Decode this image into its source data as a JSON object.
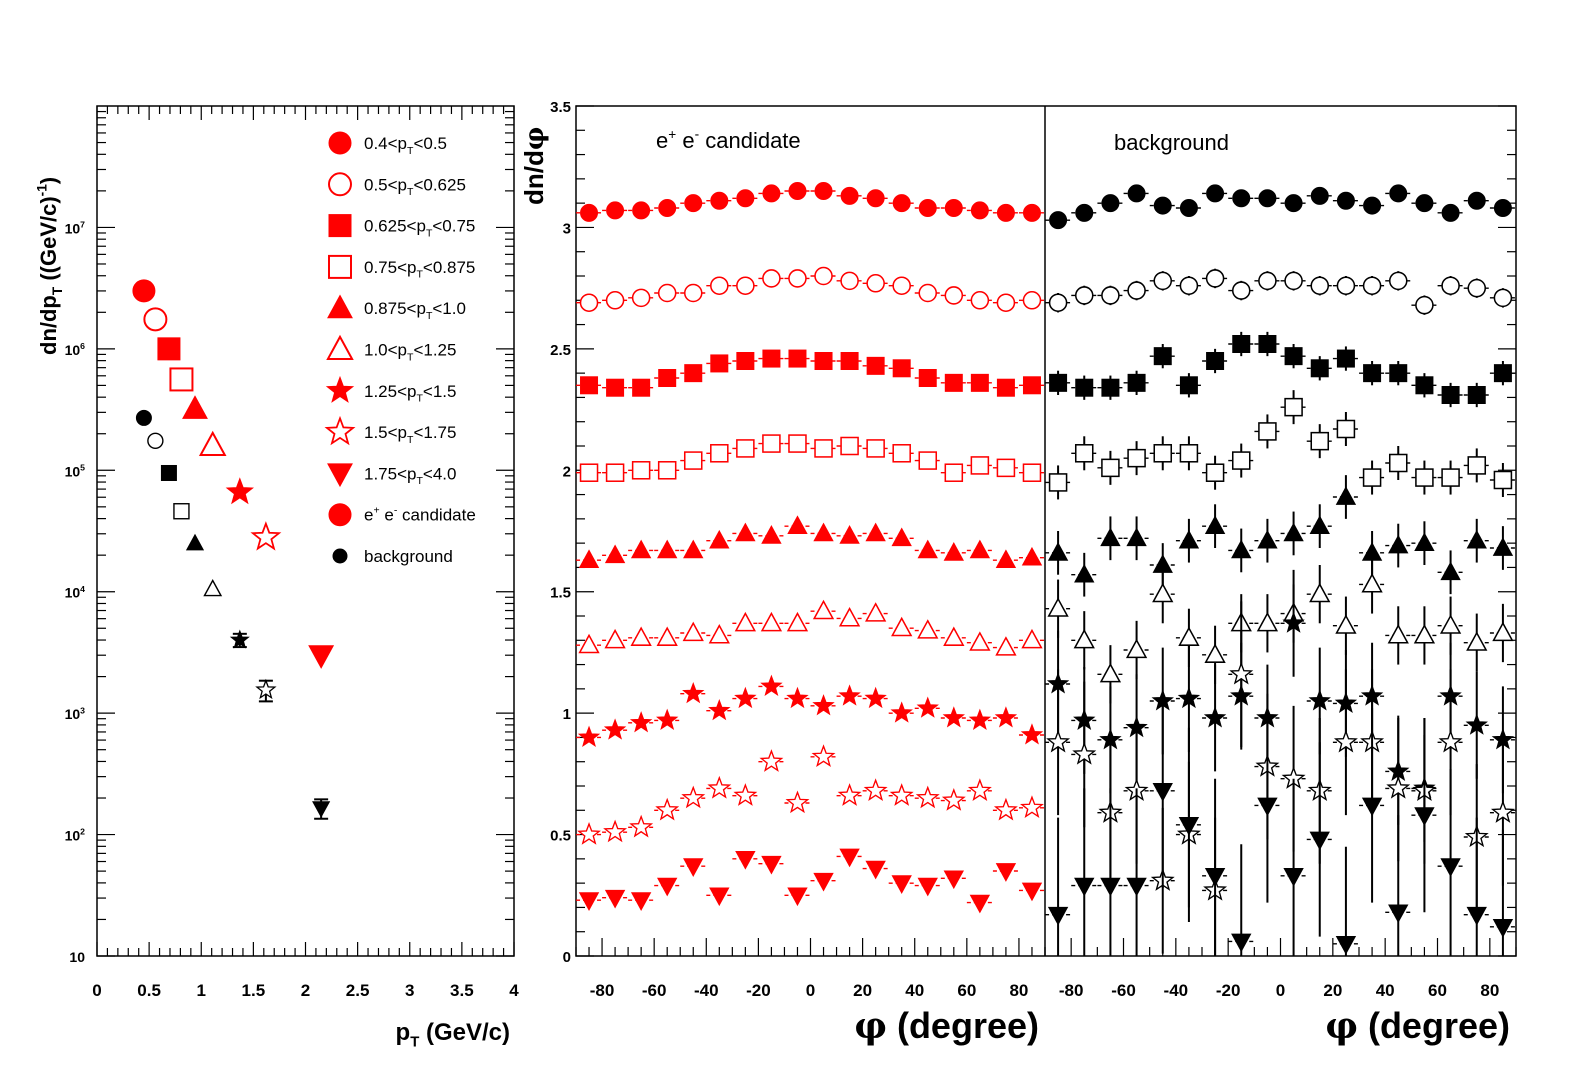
{
  "colors": {
    "candidate": "#ff0000",
    "background": "#000000"
  },
  "chart_data": [
    {
      "type": "scatter",
      "yscale": "log",
      "xlabel_main": "p",
      "xlabel_sub": "T",
      "xlabel_rest": " (GeV/c)",
      "ylabel_main": "dn/dp",
      "ylabel_sub": "T",
      "ylabel_rest": " ((GeV/c)",
      "ylabel_sup": "-1",
      "ylabel_end": ")",
      "xlim": [
        0,
        4
      ],
      "ylim": [
        10,
        100000000.0
      ],
      "xticks": [
        "0",
        "0.5",
        "1",
        "1.5",
        "2",
        "2.5",
        "3",
        "3.5",
        "4"
      ],
      "yticks": [
        {
          "base": "10",
          "exp": ""
        },
        {
          "base": "10",
          "exp": "2"
        },
        {
          "base": "10",
          "exp": "3"
        },
        {
          "base": "10",
          "exp": "4"
        },
        {
          "base": "10",
          "exp": "5"
        },
        {
          "base": "10",
          "exp": "6"
        },
        {
          "base": "10",
          "exp": "7"
        }
      ],
      "legend_position": "top-right",
      "legend": [
        {
          "marker": "circle",
          "fill": true,
          "color": "candidate",
          "pre": "0.4<p",
          "sub": "T",
          "post": "<0.5"
        },
        {
          "marker": "circle",
          "fill": false,
          "color": "candidate",
          "pre": "0.5<p",
          "sub": "T",
          "post": "<0.625"
        },
        {
          "marker": "square",
          "fill": true,
          "color": "candidate",
          "pre": "0.625<p",
          "sub": "T",
          "post": "<0.75"
        },
        {
          "marker": "square",
          "fill": false,
          "color": "candidate",
          "pre": "0.75<p",
          "sub": "T",
          "post": "<0.875"
        },
        {
          "marker": "triangle",
          "fill": true,
          "color": "candidate",
          "pre": "0.875<p",
          "sub": "T",
          "post": "<1.0"
        },
        {
          "marker": "triangle",
          "fill": false,
          "color": "candidate",
          "pre": "1.0<p",
          "sub": "T",
          "post": "<1.25"
        },
        {
          "marker": "star",
          "fill": true,
          "color": "candidate",
          "pre": "1.25<p",
          "sub": "T",
          "post": "<1.5"
        },
        {
          "marker": "star",
          "fill": false,
          "color": "candidate",
          "pre": "1.5<p",
          "sub": "T",
          "post": "<1.75"
        },
        {
          "marker": "invtriangle",
          "fill": true,
          "color": "candidate",
          "pre": "1.75<p",
          "sub": "T",
          "post": "<4.0"
        },
        {
          "marker": "circle",
          "fill": true,
          "color": "candidate",
          "pre": "e",
          "sup1": "+",
          "mid": " e",
          "sup2": "-",
          "post": " candidate"
        },
        {
          "marker": "circle",
          "fill": true,
          "color": "background",
          "small": true,
          "pre": "background"
        }
      ],
      "series": [
        {
          "name": "e+ e- candidate",
          "color": "candidate",
          "points": [
            {
              "x": 0.45,
              "y": 3000000.0,
              "marker": "circle",
              "fill": true
            },
            {
              "x": 0.56,
              "y": 1750000.0,
              "marker": "circle",
              "fill": false
            },
            {
              "x": 0.69,
              "y": 1000000.0,
              "marker": "square",
              "fill": true
            },
            {
              "x": 0.81,
              "y": 560000.0,
              "marker": "square",
              "fill": false
            },
            {
              "x": 0.94,
              "y": 320000.0,
              "marker": "triangle",
              "fill": true
            },
            {
              "x": 1.11,
              "y": 160000.0,
              "marker": "triangle",
              "fill": false
            },
            {
              "x": 1.37,
              "y": 66000.0,
              "marker": "star",
              "fill": true
            },
            {
              "x": 1.62,
              "y": 28000.0,
              "marker": "star",
              "fill": false
            },
            {
              "x": 2.15,
              "y": 3000.0,
              "marker": "invtriangle",
              "fill": true
            }
          ]
        },
        {
          "name": "background",
          "color": "background",
          "points": [
            {
              "x": 0.45,
              "y": 270000.0,
              "marker": "circle",
              "fill": true
            },
            {
              "x": 0.56,
              "y": 175000.0,
              "marker": "circle",
              "fill": false
            },
            {
              "x": 0.69,
              "y": 95000.0,
              "marker": "square",
              "fill": true
            },
            {
              "x": 0.81,
              "y": 46000.0,
              "marker": "square",
              "fill": false
            },
            {
              "x": 0.94,
              "y": 25000.0,
              "marker": "triangle",
              "fill": true
            },
            {
              "x": 1.11,
              "y": 10500.0,
              "marker": "triangle",
              "fill": false
            },
            {
              "x": 1.37,
              "y": 4000.0,
              "marker": "star",
              "fill": true,
              "yerr": 500
            },
            {
              "x": 1.62,
              "y": 1550.0,
              "marker": "star",
              "fill": false,
              "yerr": 300
            },
            {
              "x": 2.15,
              "y": 165,
              "marker": "invtriangle",
              "fill": true,
              "yerr": 30
            }
          ]
        }
      ]
    },
    {
      "type": "scatter",
      "ylabel": "dn/d",
      "ylabel_symbol": "φ",
      "xlabel_symbol": "φ",
      "xlabel": " (degree)",
      "ylim": [
        0,
        3.5
      ],
      "yticks": [
        "0",
        "0.5",
        "1",
        "1.5",
        "2",
        "2.5",
        "3",
        "3.5"
      ],
      "xticks": [
        "-80",
        "-60",
        "-40",
        "-20",
        "0",
        "20",
        "40",
        "60",
        "80"
      ],
      "xlim": [
        -90,
        90
      ],
      "panels": [
        {
          "label_pre": "e",
          "label_sup1": "+",
          "label_mid": " e",
          "label_sup2": "-",
          "label_post": " candidate",
          "color": "candidate",
          "x": [
            -85,
            -75,
            -65,
            -55,
            -45,
            -35,
            -25,
            -15,
            -5,
            5,
            15,
            25,
            35,
            45,
            55,
            65,
            75,
            85
          ],
          "series": [
            {
              "marker": "circle",
              "fill": true,
              "y": [
                3.06,
                3.07,
                3.07,
                3.08,
                3.1,
                3.11,
                3.12,
                3.14,
                3.15,
                3.15,
                3.13,
                3.12,
                3.1,
                3.08,
                3.08,
                3.07,
                3.06,
                3.06
              ]
            },
            {
              "marker": "circle",
              "fill": false,
              "y": [
                2.69,
                2.7,
                2.71,
                2.73,
                2.73,
                2.76,
                2.76,
                2.79,
                2.79,
                2.8,
                2.78,
                2.77,
                2.76,
                2.73,
                2.72,
                2.7,
                2.69,
                2.7
              ]
            },
            {
              "marker": "square",
              "fill": true,
              "y": [
                2.35,
                2.34,
                2.34,
                2.38,
                2.4,
                2.44,
                2.45,
                2.46,
                2.46,
                2.45,
                2.45,
                2.43,
                2.42,
                2.38,
                2.36,
                2.36,
                2.34,
                2.35
              ]
            },
            {
              "marker": "square",
              "fill": false,
              "y": [
                1.99,
                1.99,
                2.0,
                2.0,
                2.04,
                2.07,
                2.09,
                2.11,
                2.11,
                2.09,
                2.1,
                2.09,
                2.07,
                2.04,
                1.99,
                2.02,
                2.01,
                1.99
              ]
            },
            {
              "marker": "triangle",
              "fill": true,
              "y": [
                1.63,
                1.65,
                1.67,
                1.67,
                1.67,
                1.71,
                1.74,
                1.73,
                1.77,
                1.74,
                1.73,
                1.74,
                1.72,
                1.67,
                1.66,
                1.67,
                1.63,
                1.64
              ]
            },
            {
              "marker": "triangle",
              "fill": false,
              "y": [
                1.28,
                1.3,
                1.31,
                1.31,
                1.33,
                1.32,
                1.37,
                1.37,
                1.37,
                1.42,
                1.39,
                1.41,
                1.35,
                1.34,
                1.31,
                1.29,
                1.27,
                1.3
              ]
            },
            {
              "marker": "star",
              "fill": true,
              "y": [
                0.9,
                0.93,
                0.96,
                0.97,
                1.08,
                1.01,
                1.06,
                1.11,
                1.06,
                1.03,
                1.07,
                1.06,
                1.0,
                1.02,
                0.98,
                0.97,
                0.98,
                0.91
              ]
            },
            {
              "marker": "star",
              "fill": false,
              "y": [
                0.5,
                0.51,
                0.53,
                0.6,
                0.65,
                0.69,
                0.66,
                0.8,
                0.63,
                0.82,
                0.66,
                0.68,
                0.66,
                0.65,
                0.64,
                0.68,
                0.6,
                0.61
              ]
            },
            {
              "marker": "invtriangle",
              "fill": true,
              "y": [
                0.23,
                0.24,
                0.23,
                0.29,
                0.37,
                0.25,
                0.4,
                0.38,
                0.25,
                0.31,
                0.41,
                0.36,
                0.3,
                0.29,
                0.32,
                0.22,
                0.35,
                0.27
              ]
            }
          ]
        },
        {
          "label": "background",
          "color": "background",
          "x": [
            -85,
            -75,
            -65,
            -55,
            -45,
            -35,
            -25,
            -15,
            -5,
            5,
            15,
            25,
            35,
            45,
            55,
            65,
            75,
            85
          ],
          "series": [
            {
              "marker": "circle",
              "fill": true,
              "yerr": 0.03,
              "y": [
                3.03,
                3.06,
                3.1,
                3.14,
                3.09,
                3.08,
                3.14,
                3.12,
                3.12,
                3.1,
                3.13,
                3.11,
                3.09,
                3.14,
                3.1,
                3.06,
                3.11,
                3.08
              ]
            },
            {
              "marker": "circle",
              "fill": false,
              "yerr": 0.04,
              "y": [
                2.69,
                2.72,
                2.72,
                2.74,
                2.78,
                2.76,
                2.79,
                2.74,
                2.78,
                2.78,
                2.76,
                2.76,
                2.76,
                2.78,
                2.68,
                2.76,
                2.75,
                2.71
              ]
            },
            {
              "marker": "square",
              "fill": true,
              "yerr": 0.05,
              "y": [
                2.36,
                2.34,
                2.34,
                2.36,
                2.47,
                2.35,
                2.45,
                2.52,
                2.52,
                2.47,
                2.42,
                2.46,
                2.4,
                2.4,
                2.35,
                2.31,
                2.31,
                2.4
              ]
            },
            {
              "marker": "square",
              "fill": false,
              "yerr": 0.07,
              "y": [
                1.95,
                2.07,
                2.01,
                2.05,
                2.07,
                2.07,
                1.99,
                2.04,
                2.16,
                2.26,
                2.12,
                2.17,
                1.97,
                2.03,
                1.97,
                1.97,
                2.02,
                1.96
              ]
            },
            {
              "marker": "triangle",
              "fill": true,
              "yerr": 0.09,
              "y": [
                1.66,
                1.57,
                1.72,
                1.72,
                1.61,
                1.71,
                1.77,
                1.67,
                1.71,
                1.74,
                1.77,
                1.89,
                1.66,
                1.69,
                1.7,
                1.58,
                1.71,
                1.68
              ]
            },
            {
              "marker": "triangle",
              "fill": false,
              "yerr": 0.12,
              "y": [
                1.43,
                1.3,
                1.16,
                1.26,
                1.49,
                1.31,
                1.24,
                1.37,
                1.37,
                1.41,
                1.49,
                1.36,
                1.53,
                1.32,
                1.32,
                1.36,
                1.29,
                1.33
              ]
            },
            {
              "marker": "star",
              "fill": true,
              "yerr": 0.22,
              "y": [
                1.12,
                0.97,
                0.89,
                0.94,
                1.05,
                1.06,
                0.98,
                1.07,
                0.98,
                1.37,
                1.05,
                1.04,
                1.07,
                0.76,
                0.69,
                1.07,
                0.95,
                0.89
              ]
            },
            {
              "marker": "star",
              "fill": false,
              "yerr": 0.3,
              "y": [
                0.88,
                0.83,
                0.59,
                0.68,
                0.31,
                0.5,
                0.27,
                1.16,
                0.78,
                0.73,
                0.68,
                0.88,
                0.88,
                0.69,
                0.68,
                0.88,
                0.49,
                0.59
              ]
            },
            {
              "marker": "invtriangle",
              "fill": true,
              "yerr": 0.4,
              "y": [
                0.17,
                0.29,
                0.29,
                0.29,
                0.68,
                0.54,
                0.33,
                0.06,
                0.62,
                0.33,
                0.48,
                0.05,
                0.62,
                0.18,
                0.58,
                0.37,
                0.17,
                0.12
              ]
            }
          ]
        }
      ]
    }
  ]
}
